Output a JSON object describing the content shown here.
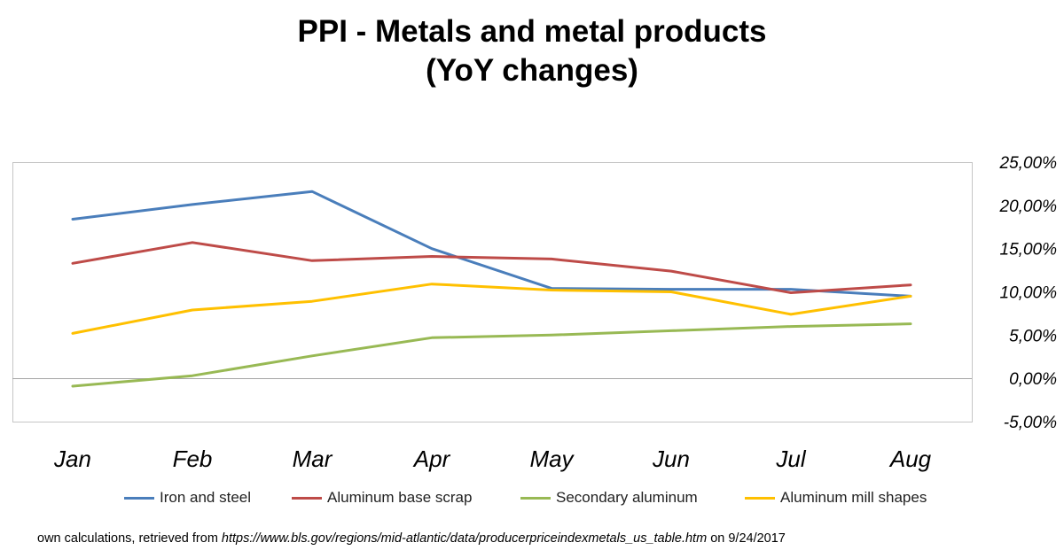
{
  "chart_data": {
    "type": "line",
    "title_line1": "PPI - Metals and metal products",
    "title_line2": "(YoY changes)",
    "categories": [
      "Jan",
      "Feb",
      "Mar",
      "Apr",
      "May",
      "Jun",
      "Jul",
      "Aug"
    ],
    "ylim": [
      -5,
      25
    ],
    "y_ticks": [
      25,
      20,
      15,
      10,
      5,
      0,
      -5
    ],
    "y_tick_labels": [
      "25,00%",
      "20,00%",
      "15,00%",
      "10,00%",
      "5,00%",
      "0,00%",
      "-5,00%"
    ],
    "y_axis_side": "right",
    "grid": false,
    "legend_position": "bottom",
    "series": [
      {
        "name": "Iron and steel",
        "color": "#4a7ebb",
        "values": [
          18.4,
          20.1,
          21.6,
          15.0,
          10.4,
          10.3,
          10.3,
          9.5
        ]
      },
      {
        "name": "Aluminum base scrap",
        "color": "#be4b48",
        "values": [
          13.3,
          15.7,
          13.6,
          14.1,
          13.8,
          12.4,
          9.9,
          10.8
        ]
      },
      {
        "name": "Secondary aluminum",
        "color": "#98b954",
        "values": [
          -0.9,
          0.3,
          2.6,
          4.7,
          5.0,
          5.5,
          6.0,
          6.3
        ]
      },
      {
        "name": "Aluminum mill shapes",
        "color": "#ffc000",
        "values": [
          5.2,
          7.9,
          8.9,
          10.9,
          10.2,
          10.0,
          7.4,
          9.5
        ]
      }
    ]
  },
  "source": {
    "prefix": "own calculations, retrieved from ",
    "url": "https://www.bls.gov/regions/mid-atlantic/data/producerpriceindexmetals_us_table.htm",
    "suffix": " on 9/24/2017"
  }
}
